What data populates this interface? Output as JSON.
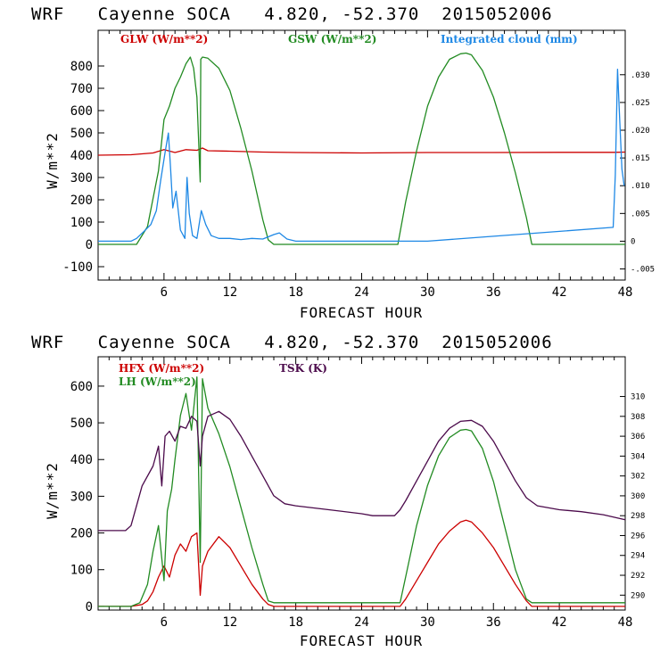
{
  "chart_data": [
    {
      "type": "line",
      "title": "WRF   Cayenne SOCA   4.820, -52.370  2015052006",
      "xlabel": "FORECAST HOUR",
      "ylabel": "W/m**2",
      "xlim": [
        0,
        48
      ],
      "xticks": [
        6,
        12,
        18,
        24,
        30,
        36,
        42,
        48
      ],
      "ylim": [
        -160,
        960
      ],
      "yticks": [
        -100,
        0,
        100,
        200,
        300,
        400,
        500,
        600,
        700,
        800
      ],
      "y2lim": [
        -0.007,
        0.038
      ],
      "y2ticks": [
        -0.005,
        0,
        0.005,
        0.01,
        0.015,
        0.02,
        0.025,
        0.03
      ],
      "y2ticklabels": [
        "-.005",
        "0",
        ".005",
        ".010",
        ".015",
        ".020",
        ".025",
        ".030"
      ],
      "series": [
        {
          "name": "GLW (W/m**2)",
          "color": "#cc0000",
          "axis": "left",
          "x": [
            0,
            3,
            5,
            6,
            7,
            8,
            9,
            9.5,
            10,
            12,
            15,
            18,
            24,
            30,
            36,
            42,
            47,
            48
          ],
          "y": [
            400,
            402,
            410,
            425,
            412,
            425,
            422,
            432,
            420,
            418,
            414,
            412,
            410,
            412,
            412,
            413,
            413,
            414
          ]
        },
        {
          "name": "GSW (W/m**2)",
          "color": "#228b22",
          "axis": "left",
          "x": [
            0,
            3.5,
            4.5,
            5.5,
            6.0,
            6.5,
            7.0,
            7.5,
            8.0,
            8.4,
            8.7,
            9.0,
            9.3,
            9.35,
            9.5,
            10,
            11,
            12,
            13,
            14,
            15,
            15.5,
            16,
            27.3,
            28,
            29,
            30,
            31,
            32,
            33,
            33.5,
            34,
            35,
            36,
            37,
            38,
            39,
            39.5,
            48
          ],
          "y": [
            0,
            0,
            80,
            330,
            560,
            620,
            700,
            750,
            810,
            840,
            790,
            660,
            280,
            830,
            840,
            835,
            790,
            690,
            520,
            330,
            110,
            20,
            0,
            0,
            190,
            420,
            620,
            750,
            830,
            855,
            858,
            850,
            780,
            660,
            500,
            320,
            120,
            0,
            0
          ]
        },
        {
          "name": "Integrated cloud (mm)",
          "color": "#1e88e5",
          "axis": "right",
          "x": [
            0,
            3,
            3.5,
            4.2,
            4.8,
            5.3,
            5.7,
            6.1,
            6.4,
            6.6,
            6.8,
            7.1,
            7.5,
            7.9,
            8.1,
            8.3,
            8.6,
            9.0,
            9.4,
            9.8,
            10.3,
            11,
            12,
            13,
            14,
            15,
            16,
            16.5,
            17.2,
            18,
            30,
            46.9,
            47.1,
            47.3,
            47.5,
            47.7,
            47.9
          ],
          "y": [
            0,
            0,
            0.0005,
            0.0018,
            0.003,
            0.0055,
            0.011,
            0.016,
            0.0195,
            0.013,
            0.006,
            0.009,
            0.002,
            0.0005,
            0.0115,
            0.005,
            0.001,
            0.0005,
            0.0055,
            0.003,
            0.001,
            0.0005,
            0.0005,
            0.0003,
            0.0005,
            0.0004,
            0.0012,
            0.0015,
            0.0004,
            0,
            0,
            0.0025,
            0.012,
            0.031,
            0.022,
            0.013,
            0.01
          ]
        }
      ]
    },
    {
      "type": "line",
      "title": "WRF   Cayenne SOCA   4.820, -52.370  2015052006",
      "xlabel": "FORECAST HOUR",
      "ylabel": "W/m**2",
      "xlim": [
        0,
        48
      ],
      "xticks": [
        6,
        12,
        18,
        24,
        30,
        36,
        42,
        48
      ],
      "ylim": [
        -10,
        680
      ],
      "yticks": [
        0,
        100,
        200,
        300,
        400,
        500,
        600
      ],
      "y2lim": [
        288.5,
        314
      ],
      "y2ticks": [
        290,
        292,
        294,
        296,
        298,
        300,
        302,
        304,
        306,
        308,
        310
      ],
      "y2ticklabels": [
        "290",
        "292",
        "294",
        "296",
        "298",
        "300",
        "302",
        "304",
        "306",
        "308",
        "310"
      ],
      "series": [
        {
          "name": "HFX (W/m**2)",
          "color": "#cc0000",
          "axis": "left",
          "x": [
            0,
            3,
            4,
            4.5,
            5,
            5.5,
            6,
            6.5,
            7,
            7.5,
            8,
            8.5,
            9,
            9.3,
            9.5,
            10,
            11,
            12,
            13,
            14,
            15,
            15.5,
            16,
            27.5,
            28,
            29,
            30,
            31,
            32,
            33,
            33.5,
            34,
            35,
            36,
            37,
            38,
            39,
            39.5,
            48
          ],
          "y": [
            0,
            0,
            5,
            15,
            40,
            80,
            110,
            80,
            140,
            170,
            150,
            190,
            200,
            30,
            110,
            150,
            190,
            160,
            110,
            60,
            20,
            5,
            0,
            0,
            20,
            70,
            120,
            170,
            205,
            230,
            235,
            230,
            200,
            160,
            110,
            60,
            15,
            0,
            0
          ]
        },
        {
          "name": "LH (W/m**2)",
          "color": "#228b22",
          "axis": "left",
          "x": [
            0,
            3,
            3.8,
            4.5,
            5,
            5.5,
            6,
            6.3,
            6.7,
            7,
            7.5,
            8,
            8.5,
            9,
            9.3,
            9.5,
            10,
            11,
            12,
            13,
            14,
            15,
            15.5,
            16,
            27.5,
            28,
            29,
            30,
            31,
            32,
            33,
            33.5,
            34,
            35,
            36,
            37,
            38,
            39,
            39.5,
            48
          ],
          "y": [
            0,
            0,
            10,
            60,
            150,
            220,
            70,
            260,
            320,
            400,
            520,
            580,
            480,
            625,
            120,
            620,
            540,
            470,
            380,
            270,
            160,
            60,
            15,
            10,
            10,
            80,
            220,
            330,
            410,
            460,
            480,
            482,
            478,
            430,
            340,
            220,
            100,
            20,
            10,
            10
          ]
        },
        {
          "name": "TSK (K)",
          "color": "#4b0a4b",
          "axis": "right",
          "x": [
            0,
            2.5,
            3,
            4,
            5,
            5.5,
            5.8,
            6.1,
            6.5,
            7,
            7.5,
            8,
            8.5,
            9,
            9.3,
            9.5,
            10,
            11,
            12,
            13,
            14,
            15,
            16,
            17,
            18,
            21,
            24,
            25,
            26,
            27,
            27.5,
            28,
            29,
            30,
            31,
            32,
            33,
            34,
            35,
            36,
            37,
            38,
            39,
            40,
            42,
            44,
            46,
            48
          ],
          "y": [
            296.5,
            296.5,
            297,
            301,
            303,
            305,
            301,
            306,
            306.5,
            305.5,
            307,
            306.8,
            308,
            307.5,
            303,
            306,
            308,
            308.5,
            307.7,
            306,
            304,
            302,
            300,
            299.2,
            299,
            298.6,
            298.2,
            298,
            298,
            298,
            298.6,
            299.5,
            301.5,
            303.5,
            305.5,
            306.8,
            307.5,
            307.6,
            307,
            305.5,
            303.5,
            301.5,
            299.8,
            299,
            298.6,
            298.4,
            298.1,
            297.6
          ]
        }
      ]
    }
  ]
}
